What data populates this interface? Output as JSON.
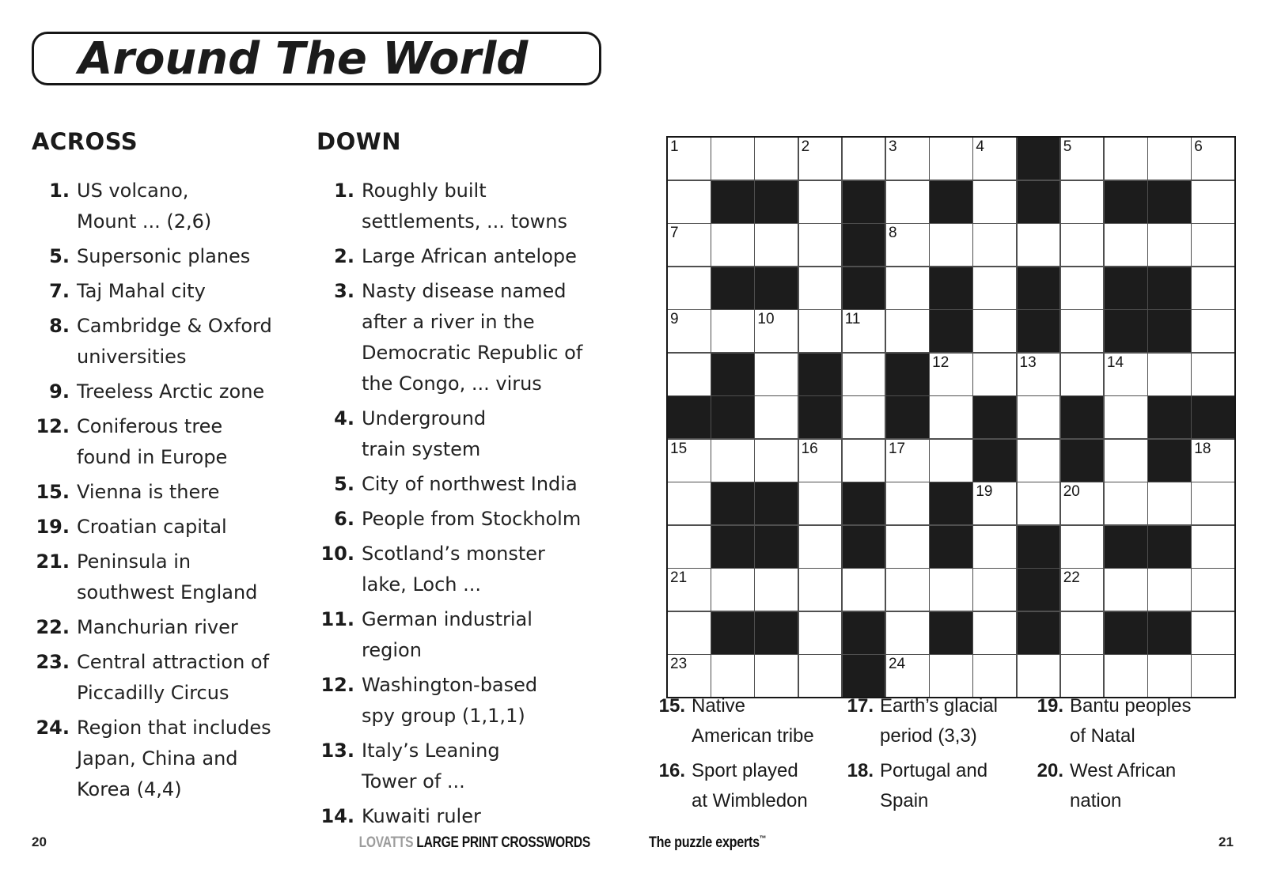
{
  "title": "Around The World",
  "across": {
    "heading": "ACROSS",
    "clues": [
      {
        "num": "1.",
        "lines": [
          "US volcano,",
          "Mount ... (2,6)"
        ]
      },
      {
        "num": "5.",
        "lines": [
          "Supersonic planes"
        ]
      },
      {
        "num": "7.",
        "lines": [
          "Taj Mahal city"
        ]
      },
      {
        "num": "8.",
        "lines": [
          "Cambridge & Oxford",
          "universities"
        ]
      },
      {
        "num": "9.",
        "lines": [
          "Treeless Arctic zone"
        ]
      },
      {
        "num": "12.",
        "lines": [
          "Coniferous tree",
          "found in Europe"
        ]
      },
      {
        "num": "15.",
        "lines": [
          "Vienna is there"
        ]
      },
      {
        "num": "19.",
        "lines": [
          "Croatian capital"
        ]
      },
      {
        "num": "21.",
        "lines": [
          "Peninsula in",
          "southwest England"
        ]
      },
      {
        "num": "22.",
        "lines": [
          "Manchurian river"
        ]
      },
      {
        "num": "23.",
        "lines": [
          "Central attraction of",
          "Piccadilly Circus"
        ]
      },
      {
        "num": "24.",
        "lines": [
          "Region that includes",
          "Japan, China and",
          "Korea (4,4)"
        ]
      }
    ]
  },
  "down": {
    "heading": "DOWN",
    "clues": [
      {
        "num": "1.",
        "lines": [
          "Roughly built",
          "settlements, ... towns"
        ]
      },
      {
        "num": "2.",
        "lines": [
          "Large African antelope"
        ]
      },
      {
        "num": "3.",
        "lines": [
          "Nasty disease named",
          "after a river in the",
          "Democratic Republic of",
          "the Congo, ... virus"
        ]
      },
      {
        "num": "4.",
        "lines": [
          "Underground",
          "train system"
        ]
      },
      {
        "num": "5.",
        "lines": [
          "City of northwest India"
        ]
      },
      {
        "num": "6.",
        "lines": [
          "People from Stockholm"
        ]
      },
      {
        "num": "10.",
        "lines": [
          "Scotland’s monster",
          "lake, Loch ..."
        ]
      },
      {
        "num": "11.",
        "lines": [
          "German industrial",
          "region"
        ]
      },
      {
        "num": "12.",
        "lines": [
          "Washington-based",
          "spy group (1,1,1)"
        ]
      },
      {
        "num": "13.",
        "lines": [
          "Italy’s Leaning",
          "Tower of ..."
        ]
      },
      {
        "num": "14.",
        "lines": [
          "Kuwaiti ruler"
        ]
      }
    ]
  },
  "grid": {
    "size": {
      "rows": 13,
      "cols": 13
    },
    "rows": [
      "........#....",
      ".##.#.#.#.##.",
      "....#........",
      ".##.#.#.#.##.",
      "......#.#.##.",
      ".#.#.#.......",
      "##.#.#.#.#.##",
      ".......#.#.#.",
      ".##.#.#......",
      ".##.#.#.#.##.",
      "........#....",
      ".##.#.#.#.##.",
      "....#........"
    ],
    "numbers": [
      {
        "r": 1,
        "c": 1,
        "n": "1"
      },
      {
        "r": 1,
        "c": 4,
        "n": "2"
      },
      {
        "r": 1,
        "c": 6,
        "n": "3"
      },
      {
        "r": 1,
        "c": 8,
        "n": "4"
      },
      {
        "r": 1,
        "c": 10,
        "n": "5"
      },
      {
        "r": 1,
        "c": 13,
        "n": "6"
      },
      {
        "r": 3,
        "c": 1,
        "n": "7"
      },
      {
        "r": 3,
        "c": 6,
        "n": "8"
      },
      {
        "r": 5,
        "c": 1,
        "n": "9"
      },
      {
        "r": 5,
        "c": 3,
        "n": "10"
      },
      {
        "r": 5,
        "c": 5,
        "n": "11"
      },
      {
        "r": 6,
        "c": 7,
        "n": "12"
      },
      {
        "r": 6,
        "c": 9,
        "n": "13"
      },
      {
        "r": 6,
        "c": 11,
        "n": "14"
      },
      {
        "r": 8,
        "c": 1,
        "n": "15"
      },
      {
        "r": 8,
        "c": 4,
        "n": "16"
      },
      {
        "r": 8,
        "c": 6,
        "n": "17"
      },
      {
        "r": 8,
        "c": 13,
        "n": "18"
      },
      {
        "r": 9,
        "c": 8,
        "n": "19"
      },
      {
        "r": 9,
        "c": 10,
        "n": "20"
      },
      {
        "r": 11,
        "c": 1,
        "n": "21"
      },
      {
        "r": 11,
        "c": 10,
        "n": "22"
      },
      {
        "r": 13,
        "c": 1,
        "n": "23"
      },
      {
        "r": 13,
        "c": 6,
        "n": "24"
      }
    ]
  },
  "bottom_clues": {
    "columns": [
      [
        {
          "num": "15.",
          "lines": [
            "Native",
            "American tribe"
          ]
        },
        {
          "num": "16.",
          "lines": [
            "Sport played",
            "at Wimbledon"
          ]
        }
      ],
      [
        {
          "num": "17.",
          "lines": [
            "Earth’s glacial",
            "period (3,3)"
          ]
        },
        {
          "num": "18.",
          "lines": [
            "Portugal and",
            "Spain"
          ]
        }
      ],
      [
        {
          "num": "19.",
          "lines": [
            "Bantu peoples",
            "of Natal"
          ]
        },
        {
          "num": "20.",
          "lines": [
            "West African",
            "nation"
          ]
        }
      ]
    ]
  },
  "footer": {
    "page_left": "20",
    "brand_gray": "LOVATTS",
    "brand_black": "LARGE PRINT CROSSWORDS",
    "tagline": "The puzzle experts",
    "trademark": "™",
    "page_right": "21"
  },
  "colors": {
    "black_cell": "#1c1c1c",
    "grid_line": "#4f4f4f",
    "brand_gray": "#9c9c9c",
    "text": "#1b1b1b"
  }
}
